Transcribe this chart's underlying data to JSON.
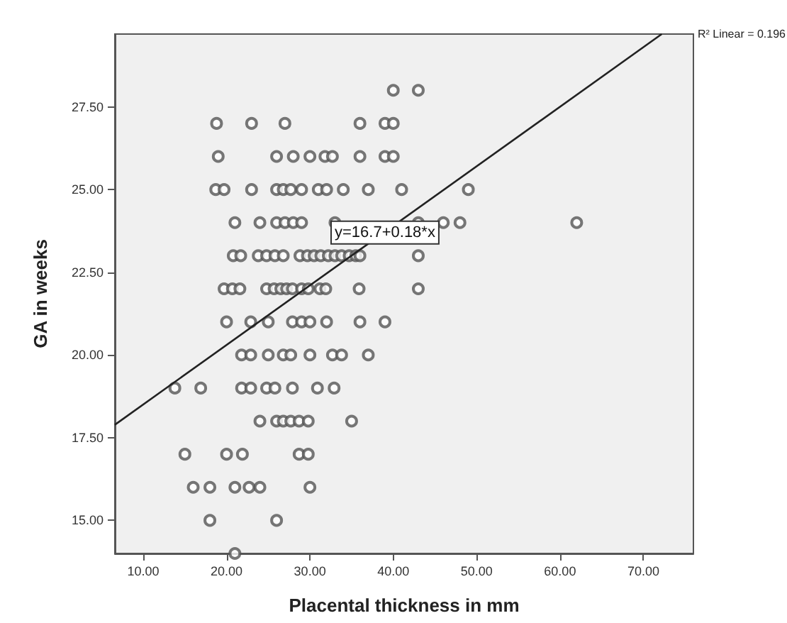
{
  "chart_data": {
    "type": "scatter",
    "xlabel": "Placental thickness in mm",
    "ylabel": "GA in weeks",
    "xlim": [
      6.6,
      76
    ],
    "ylim": [
      14,
      29.7
    ],
    "xticks": [
      {
        "value": 10,
        "label": "10.00"
      },
      {
        "value": 20,
        "label": "20.00"
      },
      {
        "value": 30,
        "label": "30.00"
      },
      {
        "value": 40,
        "label": "40.00"
      },
      {
        "value": 50,
        "label": "50.00"
      },
      {
        "value": 60,
        "label": "60.00"
      },
      {
        "value": 70,
        "label": "70.00"
      }
    ],
    "yticks": [
      {
        "value": 15,
        "label": "15.00"
      },
      {
        "value": 17.5,
        "label": "17.50"
      },
      {
        "value": 20,
        "label": "20.00"
      },
      {
        "value": 22.5,
        "label": "22.50"
      },
      {
        "value": 25,
        "label": "25.00"
      },
      {
        "value": 27.5,
        "label": "27.50"
      }
    ],
    "grid": false,
    "annotations": [
      {
        "text": "y=16.7+0.18*x",
        "x": 39,
        "y": 23.7
      },
      "R² Linear = 0.196"
    ],
    "series": [
      {
        "marker": "circle",
        "color": "#555555",
        "x": [
          40,
          43,
          18.8,
          23,
          27,
          36,
          39,
          40,
          19,
          26,
          28,
          30,
          31.8,
          32.7,
          36,
          39,
          40,
          18.7,
          19.7,
          23,
          26,
          26.8,
          27.7,
          29,
          31,
          32,
          34,
          37,
          41,
          49,
          21,
          24,
          26,
          27,
          28,
          29,
          33,
          43,
          46,
          48,
          62,
          20.8,
          21.7,
          23.8,
          24.8,
          25.8,
          26.8,
          28.8,
          29.7,
          30.5,
          31.3,
          32.2,
          33,
          33.8,
          34.7,
          35.5,
          36,
          43,
          19.7,
          20.7,
          21.6,
          24.8,
          25.7,
          26.5,
          27.2,
          27.9,
          29,
          29.8,
          31.2,
          31.9,
          35.9,
          43,
          20,
          22.9,
          25,
          27.9,
          29,
          30,
          32,
          36,
          39,
          21.8,
          22.9,
          25,
          26.8,
          27.7,
          30,
          32.7,
          33.8,
          37,
          13.8,
          16.9,
          21.8,
          22.9,
          24.8,
          25.8,
          27.9,
          30.9,
          32.9,
          24,
          26,
          26.8,
          27.7,
          28.7,
          29.8,
          35,
          15,
          20,
          21.9,
          28.7,
          29.8,
          16,
          18,
          21,
          22.7,
          24,
          30,
          18,
          26,
          21
        ],
        "values": [
          28,
          28,
          27,
          27,
          27,
          27,
          27,
          27,
          26,
          26,
          26,
          26,
          26,
          26,
          26,
          26,
          26,
          25,
          25,
          25,
          25,
          25,
          25,
          25,
          25,
          25,
          25,
          25,
          25,
          25,
          24,
          24,
          24,
          24,
          24,
          24,
          24,
          24,
          24,
          24,
          24,
          23,
          23,
          23,
          23,
          23,
          23,
          23,
          23,
          23,
          23,
          23,
          23,
          23,
          23,
          23,
          23,
          23,
          22,
          22,
          22,
          22,
          22,
          22,
          22,
          22,
          22,
          22,
          22,
          22,
          22,
          22,
          21,
          21,
          21,
          21,
          21,
          21,
          21,
          21,
          21,
          20,
          20,
          20,
          20,
          20,
          20,
          20,
          20,
          20,
          19,
          19,
          19,
          19,
          19,
          19,
          19,
          19,
          19,
          18,
          18,
          18,
          18,
          18,
          18,
          18,
          17,
          17,
          17,
          17,
          17,
          16,
          16,
          16,
          16,
          16,
          16,
          15,
          15,
          14
        ]
      },
      {
        "type": "line",
        "marker": "none",
        "color": "#222222",
        "x": [
          6.6,
          72.2
        ],
        "values": [
          17.89,
          29.7
        ]
      }
    ]
  }
}
